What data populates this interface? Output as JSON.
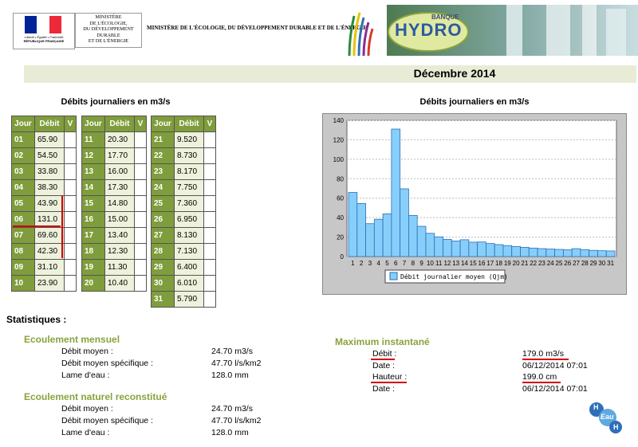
{
  "header": {
    "rf_motto": "Liberté • Égalité • Fraternité",
    "rf_name": "RÉPUBLIQUE FRANÇAISE",
    "ministry_box_lines": [
      "MINISTÈRE",
      "DE L'ÉCOLOGIE,",
      "DU DÉVELOPPEMENT",
      "DURABLE",
      "ET DE L'ÉNERGIE"
    ],
    "ministry_title": "MINISTÈRE DE L'ÉCOLOGIE, DU DÉVELOPPEMENT DURABLE ET DE L'ÉNERGIE",
    "banque_label": "BANQUE",
    "hydro_label": "HYDRO"
  },
  "month_title": "Décembre 2014",
  "table_section": {
    "title": "Débits journaliers en m3/s",
    "headers": {
      "day": "Jour",
      "flow": "Débit",
      "valid": "V"
    },
    "rows": [
      {
        "day": "01",
        "flow": "65.90"
      },
      {
        "day": "02",
        "flow": "54.50"
      },
      {
        "day": "03",
        "flow": "33.80"
      },
      {
        "day": "04",
        "flow": "38.30"
      },
      {
        "day": "05",
        "flow": "43.90"
      },
      {
        "day": "06",
        "flow": "131.0"
      },
      {
        "day": "07",
        "flow": "69.60"
      },
      {
        "day": "08",
        "flow": "42.30"
      },
      {
        "day": "09",
        "flow": "31.10"
      },
      {
        "day": "10",
        "flow": "23.90"
      },
      {
        "day": "11",
        "flow": "20.30"
      },
      {
        "day": "12",
        "flow": "17.70"
      },
      {
        "day": "13",
        "flow": "16.00"
      },
      {
        "day": "14",
        "flow": "17.30"
      },
      {
        "day": "15",
        "flow": "14.80"
      },
      {
        "day": "16",
        "flow": "15.00"
      },
      {
        "day": "17",
        "flow": "13.40"
      },
      {
        "day": "18",
        "flow": "12.30"
      },
      {
        "day": "19",
        "flow": "11.30"
      },
      {
        "day": "20",
        "flow": "10.40"
      },
      {
        "day": "21",
        "flow": "9.520"
      },
      {
        "day": "22",
        "flow": "8.730"
      },
      {
        "day": "23",
        "flow": "8.170"
      },
      {
        "day": "24",
        "flow": "7.750"
      },
      {
        "day": "25",
        "flow": "7.360"
      },
      {
        "day": "26",
        "flow": "6.950"
      },
      {
        "day": "27",
        "flow": "8.130"
      },
      {
        "day": "28",
        "flow": "7.130"
      },
      {
        "day": "29",
        "flow": "6.400"
      },
      {
        "day": "30",
        "flow": "6.010"
      },
      {
        "day": "31",
        "flow": "5.790"
      }
    ]
  },
  "chart_section": {
    "title": "Débits journaliers en m3/s"
  },
  "chart_data": {
    "type": "bar",
    "categories": [
      "1",
      "2",
      "3",
      "4",
      "5",
      "6",
      "7",
      "8",
      "9",
      "10",
      "11",
      "12",
      "13",
      "14",
      "15",
      "16",
      "17",
      "18",
      "19",
      "20",
      "21",
      "22",
      "23",
      "24",
      "25",
      "26",
      "27",
      "28",
      "29",
      "30",
      "31"
    ],
    "series": [
      {
        "name": "Débit journalier moyen (Qjm)",
        "values": [
          65.9,
          54.5,
          33.8,
          38.3,
          43.9,
          131.0,
          69.6,
          42.3,
          31.1,
          23.9,
          20.3,
          17.7,
          16.0,
          17.3,
          14.8,
          15.0,
          13.4,
          12.3,
          11.3,
          10.4,
          9.52,
          8.73,
          8.17,
          7.75,
          7.36,
          6.95,
          8.13,
          7.13,
          6.4,
          6.01,
          5.79
        ]
      }
    ],
    "y_ticks": [
      "0",
      "20",
      "40",
      "60",
      "80",
      "100",
      "120",
      "140"
    ],
    "ylim": [
      0,
      140
    ],
    "grid": true,
    "legend": "bottom",
    "bar_color": "#87cefa"
  },
  "stats": {
    "title": "Statistiques :",
    "monthly": {
      "heading": "Ecoulement mensuel",
      "rows": [
        {
          "label": "Débit moyen :",
          "value": "24.70 m3/s"
        },
        {
          "label": "Débit moyen spécifique :",
          "value": "47.70 l/s/km2"
        },
        {
          "label": "Lame d'eau :",
          "value": "128.0 mm"
        }
      ]
    },
    "natural": {
      "heading": "Ecoulement naturel reconstitué",
      "rows": [
        {
          "label": "Débit moyen :",
          "value": "24.70 m3/s"
        },
        {
          "label": "Débit moyen spécifique :",
          "value": "47.70 l/s/km2"
        },
        {
          "label": "Lame d'eau :",
          "value": "128.0 mm"
        }
      ]
    },
    "maximum": {
      "heading": "Maximum instantané",
      "rows": [
        {
          "label": "Débit :",
          "value": "179.0 m3/s"
        },
        {
          "label": "Date :",
          "value": "06/12/2014 07:01"
        },
        {
          "label": "Hauteur :",
          "value": "199.0 cm"
        },
        {
          "label": "Date :",
          "value": "06/12/2014 07:01"
        }
      ]
    }
  },
  "footer_logo": {
    "letters": [
      "H",
      "Eau",
      "H"
    ]
  },
  "colors": {
    "accent_green": "#7f9d3c",
    "heading_green": "#8aa33d",
    "highlight_red": "#d30000"
  }
}
